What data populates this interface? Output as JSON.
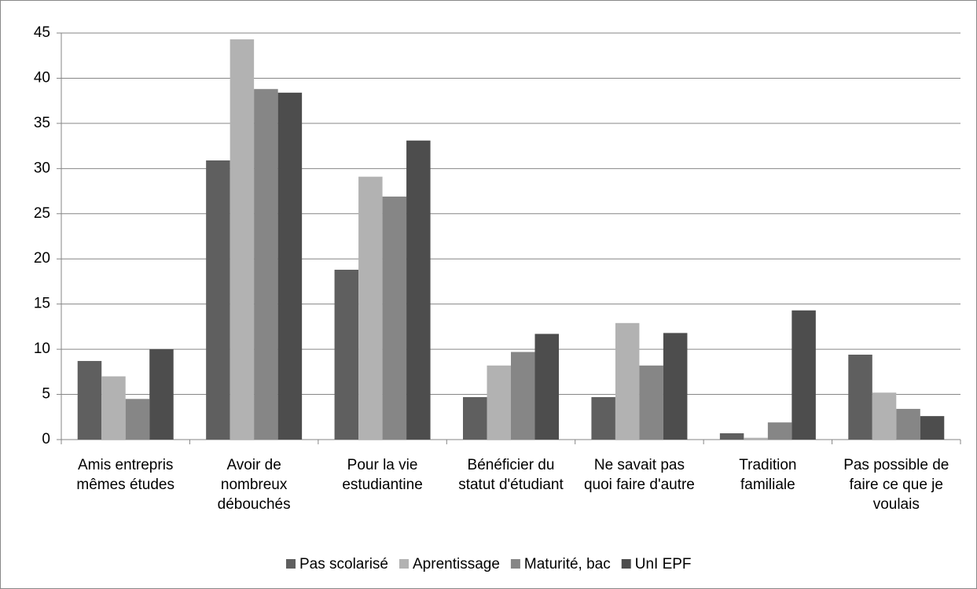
{
  "chart_data": {
    "type": "bar",
    "categories": [
      "Amis entrepris mêmes études",
      "Avoir de nombreux débouchés",
      "Pour la vie estudiantine",
      "Bénéficier du statut d'étudiant",
      "Ne savait pas quoi faire d'autre",
      "Tradition familiale",
      "Pas possible de faire ce que je voulais"
    ],
    "series": [
      {
        "name": "Pas scolarisé",
        "color": "#5f5f5f",
        "values": [
          8.7,
          30.9,
          18.8,
          4.7,
          4.7,
          0.7,
          9.4
        ]
      },
      {
        "name": "Aprentissage",
        "color": "#b2b2b2",
        "values": [
          7.0,
          44.3,
          29.1,
          8.2,
          12.9,
          0.2,
          5.2
        ]
      },
      {
        "name": "Maturité, bac",
        "color": "#868686",
        "values": [
          4.5,
          38.8,
          26.9,
          9.7,
          8.2,
          1.9,
          3.4
        ]
      },
      {
        "name": "UnI EPF",
        "color": "#4d4d4d",
        "values": [
          10.0,
          38.4,
          33.1,
          11.7,
          11.8,
          14.3,
          2.6
        ]
      }
    ],
    "ylim": [
      0,
      45
    ],
    "yticks": [
      0,
      5,
      10,
      15,
      20,
      25,
      30,
      35,
      40,
      45
    ],
    "grid": true,
    "legend": "bottom"
  }
}
